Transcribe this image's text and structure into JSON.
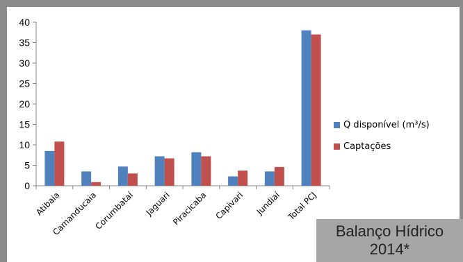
{
  "title": {
    "line1": "Balanço Hídrico",
    "line2": "2014*"
  },
  "chart_data": {
    "type": "bar",
    "categories": [
      "Atibaia",
      "Camanducaia",
      "Corumbataí",
      "Jaguari",
      "Piracicaba",
      "Capivari",
      "Jundiaí",
      "Total PCJ"
    ],
    "series": [
      {
        "name": "Q disponível (m³/s)",
        "color": "#4f81bd",
        "values": [
          8.5,
          3.5,
          4.7,
          7.2,
          8.2,
          2.3,
          3.5,
          38
        ]
      },
      {
        "name": "Captações",
        "color": "#c0504d",
        "values": [
          10.8,
          0.9,
          3.0,
          6.7,
          7.2,
          3.7,
          4.6,
          37
        ]
      }
    ],
    "ylim": [
      0,
      40
    ],
    "yticks": [
      0,
      5,
      10,
      15,
      20,
      25,
      30,
      35,
      40
    ],
    "grid": false,
    "legend_position": "right"
  }
}
